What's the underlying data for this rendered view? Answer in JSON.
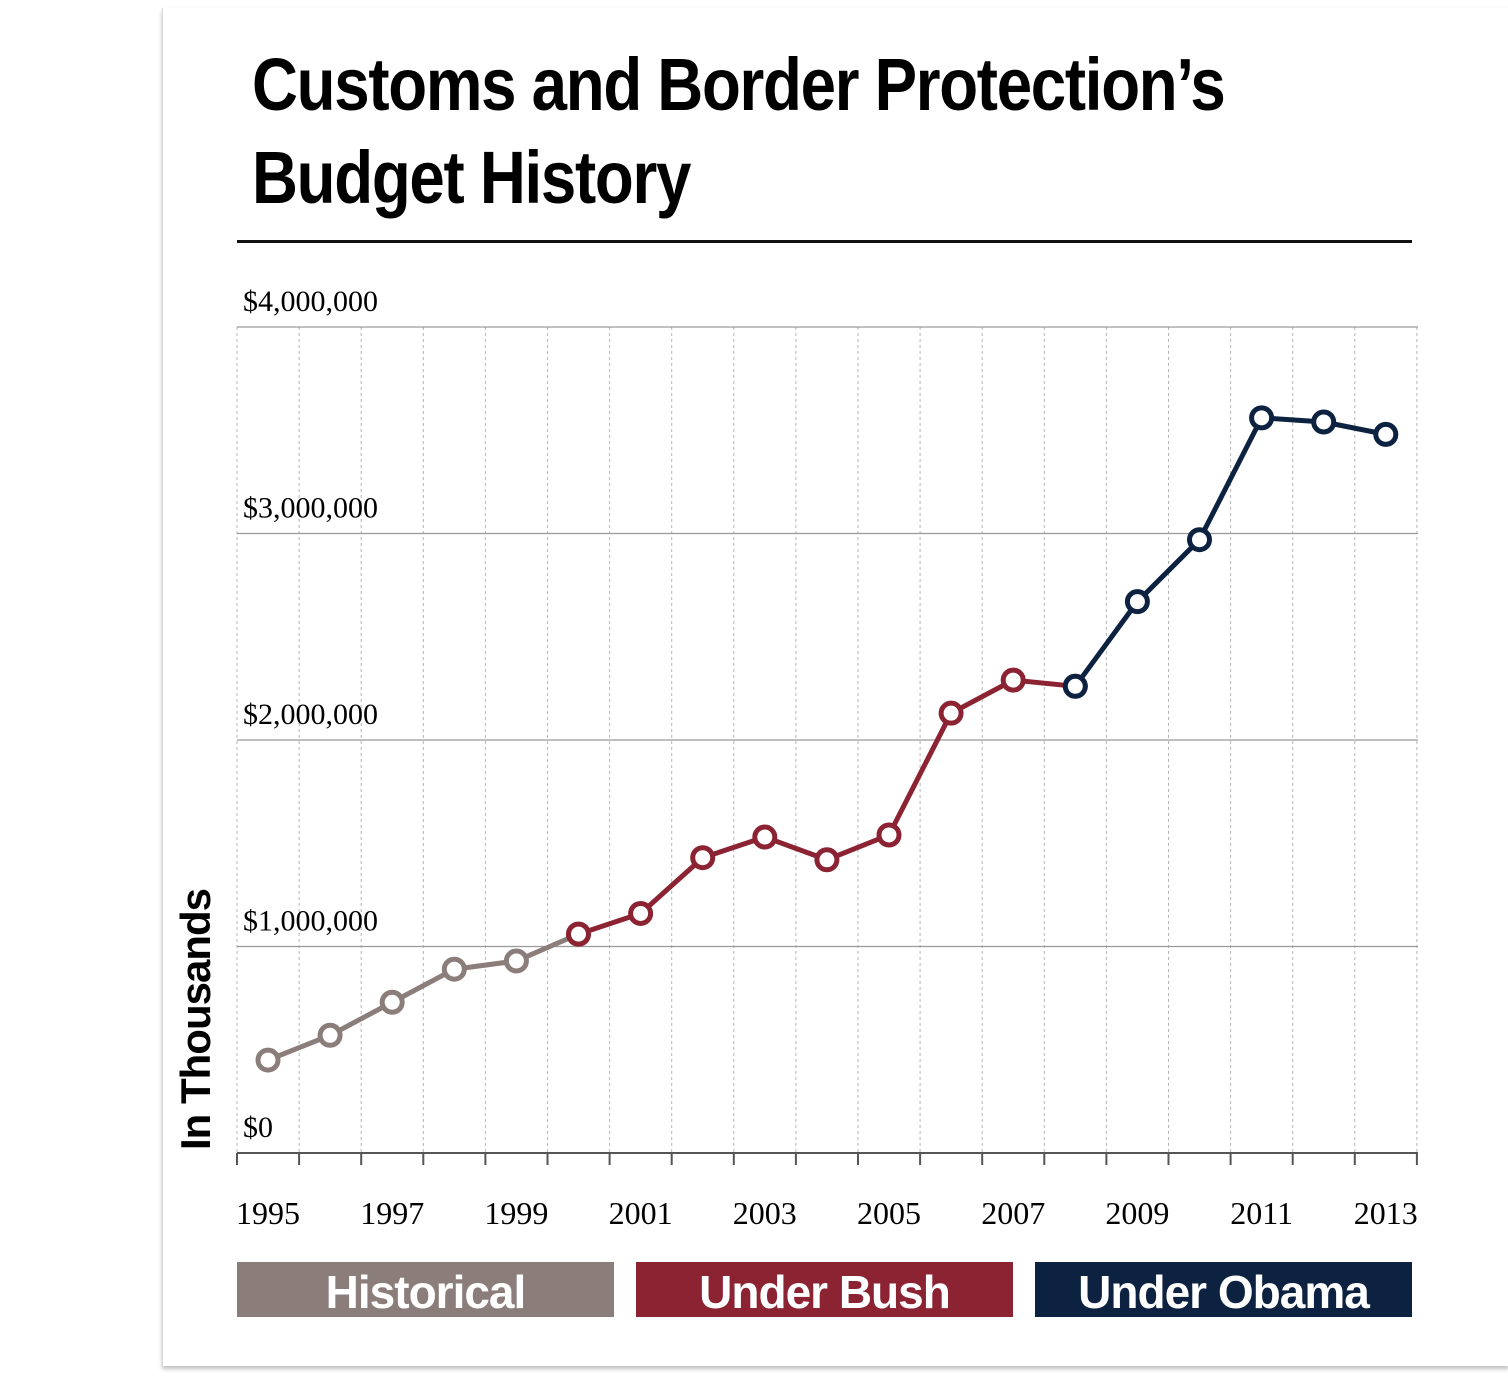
{
  "title": "Customs and Border Protection’s Budget History",
  "colors": {
    "historical": "#8a7d7a",
    "bush": "#8b2332",
    "obama": "#0d2240",
    "grid": "#9a9a9a"
  },
  "legend": {
    "historical": "Historical",
    "bush": "Under Bush",
    "obama": "Under Obama"
  },
  "chart_data": {
    "type": "line",
    "title": "Customs and Border Protection’s Budget History",
    "ylabel": "In Thousands",
    "xlabel": "",
    "ylim": [
      0,
      4000000
    ],
    "y_ticks": [
      0,
      1000000,
      2000000,
      3000000,
      4000000
    ],
    "y_tick_labels": [
      "$0",
      "$1,000,000",
      "$2,000,000",
      "$3,000,000",
      "$4,000,000"
    ],
    "x_tick_labels": [
      "1995",
      "1997",
      "1999",
      "2001",
      "2003",
      "2005",
      "2007",
      "2009",
      "2011",
      "2013"
    ],
    "x": [
      1995,
      1996,
      1997,
      1998,
      1999,
      2000,
      2001,
      2002,
      2003,
      2004,
      2005,
      2006,
      2007,
      2008,
      2009,
      2010,
      2011,
      2012,
      2013
    ],
    "grid": true,
    "series": [
      {
        "name": "Historical",
        "color": "#8a7d7a",
        "x": [
          1995,
          1996,
          1997,
          1998,
          1999,
          2000
        ],
        "values": [
          450000,
          570000,
          730000,
          890000,
          930000,
          1060000
        ]
      },
      {
        "name": "Under Bush",
        "color": "#8b2332",
        "x": [
          2000,
          2001,
          2002,
          2003,
          2004,
          2005,
          2006,
          2007,
          2008
        ],
        "values": [
          1060000,
          1160000,
          1430000,
          1530000,
          1420000,
          1540000,
          2130000,
          2290000,
          2260000
        ]
      },
      {
        "name": "Under Obama",
        "color": "#0d2240",
        "x": [
          2008,
          2009,
          2010,
          2011,
          2012,
          2013
        ],
        "values": [
          2260000,
          2670000,
          2970000,
          3560000,
          3540000,
          3480000
        ]
      }
    ]
  }
}
